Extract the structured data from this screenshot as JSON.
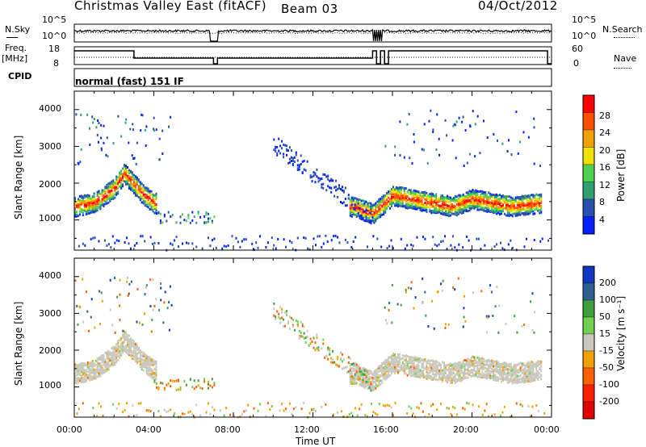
{
  "header": {
    "title": "Christmas Valley East (fitACF)",
    "beam": "Beam 03",
    "date": "04/Oct/2012"
  },
  "strip": {
    "nsky_label": "N.Sky",
    "nsky_ticks": [
      "10^5",
      "10^0"
    ],
    "nsearch_label": "N.Search",
    "freq_label_1": "Freq.",
    "freq_label_2": "[MHz]",
    "freq_ticks": [
      "18",
      "8"
    ],
    "nave_ticks": [
      "60",
      "0"
    ],
    "nave_label": "Nave",
    "cpid_label": "CPID",
    "cpid_value": "normal (fast) 151 IF"
  },
  "power_panel": {
    "ylabel": "Slant Range [km]",
    "yticks": [
      "4000",
      "3000",
      "2000",
      "1000"
    ],
    "colorbar_label": "Power [dB]",
    "colorbar_ticks": [
      "28",
      "24",
      "20",
      "16",
      "12",
      "8",
      "4"
    ],
    "colors": [
      "#0020ff",
      "#2850b0",
      "#30a070",
      "#50d050",
      "#f0e000",
      "#f0a000",
      "#ff5000",
      "#ff0000"
    ]
  },
  "velocity_panel": {
    "ylabel": "Slant Range [km]",
    "yticks": [
      "4000",
      "3000",
      "2000",
      "1000"
    ],
    "colorbar_label": "Velocity [m s⁻¹]",
    "colorbar_ticks": [
      "200",
      "100",
      "50",
      "15",
      "-15",
      "-50",
      "-100",
      "-200"
    ],
    "colors": [
      "#1038c0",
      "#306090",
      "#40a040",
      "#70d050",
      "#c8c8bc",
      "#f0a000",
      "#ff6000",
      "#ff2000",
      "#e00000"
    ]
  },
  "x_axis": {
    "ticks": [
      "00:00",
      "04:00",
      "08:00",
      "12:00",
      "16:00",
      "20:00",
      "00:00"
    ],
    "label": "Time UT"
  },
  "chart_data": [
    {
      "type": "heatmap",
      "title": "",
      "quantity": "Power [dB]",
      "xlabel": "Time UT",
      "ylabel": "Slant Range [km]",
      "xlim": [
        0,
        24
      ],
      "ylim": [
        180,
        4500
      ],
      "color_scale": [
        4,
        8,
        12,
        16,
        20,
        24,
        28
      ],
      "main_band": [
        {
          "t": 0.0,
          "range": 1400
        },
        {
          "t": 1.0,
          "range": 1500
        },
        {
          "t": 2.0,
          "range": 1900
        },
        {
          "t": 2.5,
          "range": 2300
        },
        {
          "t": 3.0,
          "range": 2000
        },
        {
          "t": 3.5,
          "range": 1700
        },
        {
          "t": 4.0,
          "range": 1500
        },
        {
          "t": 14.0,
          "range": 1400
        },
        {
          "t": 15.0,
          "range": 1200
        },
        {
          "t": 16.0,
          "range": 1700
        },
        {
          "t": 17.0,
          "range": 1600
        },
        {
          "t": 18.0,
          "range": 1500
        },
        {
          "t": 19.0,
          "range": 1400
        },
        {
          "t": 20.0,
          "range": 1600
        },
        {
          "t": 21.0,
          "range": 1500
        },
        {
          "t": 22.0,
          "range": 1400
        },
        {
          "t": 23.5,
          "range": 1500
        }
      ]
    },
    {
      "type": "heatmap",
      "title": "",
      "quantity": "Velocity [m s-1]",
      "xlabel": "Time UT",
      "ylabel": "Slant Range [km]",
      "xlim": [
        0,
        24
      ],
      "ylim": [
        180,
        4500
      ],
      "color_scale": [
        200,
        100,
        50,
        15,
        -15,
        -50,
        -100,
        -200
      ]
    }
  ]
}
